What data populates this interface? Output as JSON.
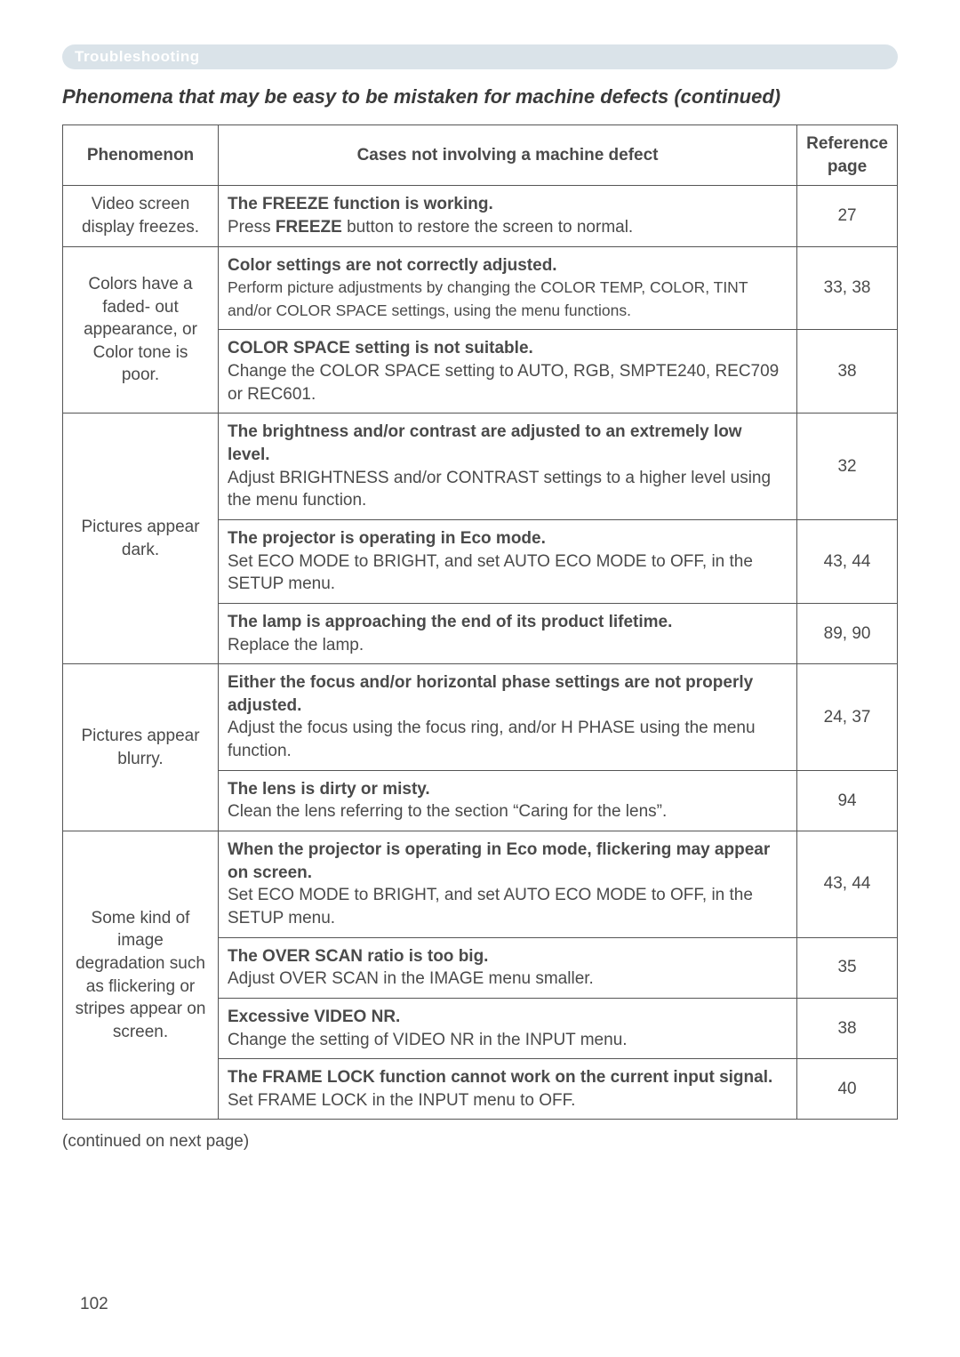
{
  "section_label": "Troubleshooting",
  "page_title": "Phenomena that may be easy to be mistaken for machine defects (continued)",
  "headers": {
    "phenomenon": "Phenomenon",
    "cases": "Cases not involving a machine defect",
    "reference": "Reference page"
  },
  "rows": [
    {
      "phenomenon": "Video screen display freezes.",
      "rowspan": 1,
      "cases": [
        {
          "title": "The FREEZE function is working.",
          "body_pre": "Press ",
          "body_bold": "FREEZE",
          "body_post": " button to restore the screen to normal.",
          "ref": "27"
        }
      ]
    },
    {
      "phenomenon": "Colors have a faded- out appearance, or Color tone is poor.",
      "rowspan": 2,
      "cases": [
        {
          "title": "Color settings are not correctly adjusted.",
          "body": "Perform picture adjustments by changing the COLOR TEMP, COLOR, TINT and/or COLOR SPACE settings, using the menu functions.",
          "body_size": "17.5px",
          "ref": "33, 38"
        },
        {
          "title": "COLOR SPACE setting is not suitable.",
          "body": "Change the COLOR SPACE setting to AUTO, RGB, SMPTE240, REC709 or REC601.",
          "ref": "38"
        }
      ]
    },
    {
      "phenomenon": "Pictures appear dark.",
      "rowspan": 3,
      "cases": [
        {
          "title": "The brightness and/or contrast are adjusted to an extremely low level.",
          "body": "Adjust BRIGHTNESS and/or CONTRAST settings to a higher level using the menu function.",
          "ref": "32"
        },
        {
          "title": "The projector is operating in Eco mode.",
          "body": "Set ECO MODE to BRIGHT, and set AUTO ECO MODE to OFF, in the SETUP menu.",
          "ref": "43, 44"
        },
        {
          "title": "The lamp is approaching the end of its product lifetime.",
          "body": "Replace the lamp.",
          "ref": "89, 90"
        }
      ]
    },
    {
      "phenomenon": "Pictures appear blurry.",
      "rowspan": 2,
      "cases": [
        {
          "title": "Either the focus and/or horizontal phase settings are not properly adjusted.",
          "body": "Adjust the focus using the focus ring, and/or H PHASE using the menu function.",
          "ref": "24, 37"
        },
        {
          "title": "The lens is dirty or misty.",
          "body": "Clean the lens referring to the section “Caring for the lens”.",
          "ref": "94"
        }
      ]
    },
    {
      "phenomenon": "Some kind of image degradation such as flickering or stripes appear on screen.",
      "rowspan": 4,
      "cases": [
        {
          "title": "When the projector is operating in Eco mode, flickering may appear on screen.",
          "body": "Set ECO MODE to BRIGHT, and set AUTO ECO MODE to OFF, in the SETUP menu.",
          "ref": "43, 44"
        },
        {
          "title": "The OVER SCAN ratio is too big.",
          "body": "Adjust OVER SCAN in the IMAGE menu smaller.",
          "ref": "35"
        },
        {
          "title": "Excessive VIDEO NR.",
          "body": "Change the setting of VIDEO NR in the INPUT menu.",
          "ref": "38"
        },
        {
          "title": "The FRAME LOCK function cannot work on the current input signal.",
          "body": "Set FRAME LOCK in the INPUT menu to OFF.",
          "ref": "40"
        }
      ]
    }
  ],
  "continued_text": "(continued on next page)",
  "page_number": "102",
  "colors": {
    "bar_bg": "#dae3e9",
    "bar_text": "#ffffff",
    "body_text": "#4a4a4a",
    "border": "#555555"
  }
}
